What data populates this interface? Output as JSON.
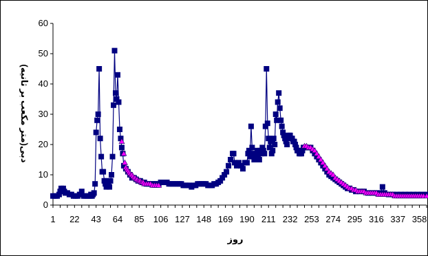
{
  "chart_data": {
    "type": "line",
    "xlabel": "روز",
    "ylabel": "دبی(متر مکعب بر ثانیه)",
    "xlim": [
      1,
      365
    ],
    "ylim": [
      0,
      60
    ],
    "grid": false,
    "legend": "none",
    "x_ticks": [
      1,
      22,
      43,
      64,
      85,
      106,
      127,
      148,
      169,
      190,
      211,
      232,
      253,
      274,
      295,
      316,
      337,
      358
    ],
    "y_ticks": [
      0,
      10,
      20,
      30,
      40,
      50,
      60
    ],
    "colors": {
      "observed": "#000080",
      "simulated": "#ff00ff",
      "sim_edge": "#1a0a6e"
    },
    "series": [
      {
        "values_day_q": [
          [
            1,
            3
          ],
          [
            3,
            3
          ],
          [
            5,
            3
          ],
          [
            7,
            3.5
          ],
          [
            8,
            4.5
          ],
          [
            9,
            5.5
          ],
          [
            10,
            5
          ],
          [
            11,
            5.5
          ],
          [
            12,
            4.5
          ],
          [
            13,
            4
          ],
          [
            15,
            4
          ],
          [
            17,
            3.5
          ],
          [
            19,
            3.5
          ],
          [
            21,
            3
          ],
          [
            23,
            3
          ],
          [
            25,
            3
          ],
          [
            27,
            3.5
          ],
          [
            29,
            4.5
          ],
          [
            31,
            3
          ],
          [
            33,
            3
          ],
          [
            35,
            3
          ],
          [
            37,
            3
          ],
          [
            38,
            3.5
          ],
          [
            39,
            3
          ],
          [
            40,
            3.5
          ],
          [
            41,
            4
          ],
          [
            42,
            7
          ],
          [
            43,
            24
          ],
          [
            44,
            28
          ],
          [
            45,
            30
          ],
          [
            46,
            45
          ],
          [
            47,
            22
          ],
          [
            48,
            16
          ],
          [
            49,
            11
          ],
          [
            50,
            11
          ],
          [
            51,
            8
          ],
          [
            52,
            7
          ],
          [
            53,
            6
          ],
          [
            54,
            8
          ],
          [
            55,
            7
          ],
          [
            56,
            6
          ],
          [
            57,
            8
          ],
          [
            58,
            10
          ],
          [
            59,
            16
          ],
          [
            60,
            33
          ],
          [
            61,
            51
          ],
          [
            62,
            37
          ],
          [
            63,
            35
          ],
          [
            64,
            43
          ],
          [
            65,
            34
          ],
          [
            66,
            25
          ],
          [
            67,
            22
          ],
          [
            68,
            19
          ],
          [
            69,
            17
          ],
          [
            70,
            13
          ],
          [
            72,
            12
          ],
          [
            74,
            11
          ],
          [
            76,
            10
          ],
          [
            78,
            9
          ],
          [
            80,
            9
          ],
          [
            82,
            8.5
          ],
          [
            84,
            8
          ],
          [
            86,
            8
          ],
          [
            88,
            7.5
          ],
          [
            90,
            7.5
          ],
          [
            92,
            7
          ],
          [
            94,
            7
          ],
          [
            96,
            7
          ],
          [
            98,
            7
          ],
          [
            100,
            7
          ],
          [
            102,
            7
          ],
          [
            104,
            7
          ],
          [
            106,
            7.5
          ],
          [
            108,
            7.5
          ],
          [
            110,
            7.5
          ],
          [
            112,
            7.5
          ],
          [
            114,
            7
          ],
          [
            116,
            7
          ],
          [
            118,
            7
          ],
          [
            120,
            7
          ],
          [
            122,
            7
          ],
          [
            124,
            7
          ],
          [
            126,
            7
          ],
          [
            128,
            6.5
          ],
          [
            130,
            6.5
          ],
          [
            132,
            6.5
          ],
          [
            134,
            6.5
          ],
          [
            136,
            6
          ],
          [
            138,
            6.5
          ],
          [
            140,
            6.5
          ],
          [
            142,
            7
          ],
          [
            144,
            7
          ],
          [
            146,
            7
          ],
          [
            148,
            7
          ],
          [
            150,
            7
          ],
          [
            152,
            6.5
          ],
          [
            154,
            6.5
          ],
          [
            156,
            6.5
          ],
          [
            158,
            7
          ],
          [
            160,
            7
          ],
          [
            162,
            7.5
          ],
          [
            164,
            8
          ],
          [
            166,
            9
          ],
          [
            168,
            10
          ],
          [
            170,
            11
          ],
          [
            172,
            13
          ],
          [
            174,
            15
          ],
          [
            176,
            17
          ],
          [
            177,
            17
          ],
          [
            178,
            14
          ],
          [
            180,
            13
          ],
          [
            182,
            14
          ],
          [
            184,
            13
          ],
          [
            186,
            12
          ],
          [
            188,
            14
          ],
          [
            190,
            14
          ],
          [
            191,
            17
          ],
          [
            192,
            18
          ],
          [
            193,
            16
          ],
          [
            194,
            26
          ],
          [
            195,
            19
          ],
          [
            196,
            17
          ],
          [
            197,
            15
          ],
          [
            198,
            16
          ],
          [
            199,
            17
          ],
          [
            200,
            18
          ],
          [
            201,
            16
          ],
          [
            202,
            15
          ],
          [
            203,
            18
          ],
          [
            204,
            17
          ],
          [
            205,
            19
          ],
          [
            206,
            18
          ],
          [
            207,
            17
          ],
          [
            208,
            26
          ],
          [
            209,
            45
          ],
          [
            210,
            27
          ],
          [
            211,
            22
          ],
          [
            212,
            19
          ],
          [
            213,
            21
          ],
          [
            214,
            17
          ],
          [
            215,
            18
          ],
          [
            216,
            22
          ],
          [
            217,
            20
          ],
          [
            218,
            30
          ],
          [
            219,
            28
          ],
          [
            220,
            34
          ],
          [
            221,
            37
          ],
          [
            222,
            32
          ],
          [
            223,
            28
          ],
          [
            224,
            26
          ],
          [
            225,
            24
          ],
          [
            226,
            23
          ],
          [
            227,
            22
          ],
          [
            228,
            21
          ],
          [
            229,
            20
          ],
          [
            230,
            22
          ],
          [
            231,
            23
          ],
          [
            232,
            23
          ],
          [
            233,
            22
          ],
          [
            234,
            22
          ],
          [
            235,
            21
          ],
          [
            236,
            21
          ],
          [
            237,
            20
          ],
          [
            238,
            19
          ],
          [
            239,
            18
          ],
          [
            240,
            18
          ],
          [
            241,
            17
          ],
          [
            242,
            17
          ],
          [
            243,
            17
          ],
          [
            244,
            18
          ],
          [
            245,
            19
          ],
          [
            246,
            19
          ],
          [
            247,
            19
          ],
          [
            248,
            19
          ],
          [
            250,
            19
          ],
          [
            252,
            19
          ],
          [
            254,
            18
          ],
          [
            256,
            17
          ],
          [
            258,
            16
          ],
          [
            260,
            15
          ],
          [
            262,
            14
          ],
          [
            264,
            13
          ],
          [
            266,
            12
          ],
          [
            268,
            11
          ],
          [
            270,
            10
          ],
          [
            272,
            9.5
          ],
          [
            274,
            9
          ],
          [
            276,
            8.5
          ],
          [
            278,
            8
          ],
          [
            280,
            7.5
          ],
          [
            282,
            7
          ],
          [
            284,
            6.5
          ],
          [
            286,
            6
          ],
          [
            288,
            5.5
          ],
          [
            290,
            5.5
          ],
          [
            292,
            5
          ],
          [
            294,
            5
          ],
          [
            296,
            4.5
          ],
          [
            300,
            4.5
          ],
          [
            304,
            4.5
          ],
          [
            308,
            4
          ],
          [
            312,
            4
          ],
          [
            316,
            4
          ],
          [
            320,
            4
          ],
          [
            322,
            6
          ],
          [
            324,
            4
          ],
          [
            328,
            3.5
          ],
          [
            332,
            3.5
          ],
          [
            336,
            3.5
          ],
          [
            340,
            3.5
          ],
          [
            344,
            3.5
          ],
          [
            348,
            3.5
          ],
          [
            352,
            3.5
          ],
          [
            356,
            3.5
          ],
          [
            360,
            3.5
          ],
          [
            365,
            3.5
          ]
        ]
      },
      {
        "values_day_q": [
          [
            68,
            21
          ],
          [
            70,
            17
          ],
          [
            71,
            14
          ],
          [
            72,
            12.5
          ],
          [
            73,
            12
          ],
          [
            74,
            11.5
          ],
          [
            75,
            11
          ],
          [
            76,
            10.5
          ],
          [
            77,
            10
          ],
          [
            78,
            10
          ],
          [
            79,
            9.5
          ],
          [
            80,
            9
          ],
          [
            81,
            9
          ],
          [
            82,
            8.5
          ],
          [
            83,
            8.5
          ],
          [
            84,
            8
          ],
          [
            85,
            8
          ],
          [
            86,
            8
          ],
          [
            87,
            7.5
          ],
          [
            88,
            7.5
          ],
          [
            89,
            7.5
          ],
          [
            90,
            7
          ],
          [
            92,
            7
          ],
          [
            94,
            7
          ],
          [
            96,
            7
          ],
          [
            98,
            6.5
          ],
          [
            100,
            6.5
          ],
          [
            102,
            6.5
          ],
          [
            104,
            6.5
          ],
          [
            246,
            19.5
          ],
          [
            248,
            19.5
          ],
          [
            250,
            19
          ],
          [
            252,
            19
          ],
          [
            254,
            18.5
          ],
          [
            256,
            18
          ],
          [
            258,
            17
          ],
          [
            260,
            16
          ],
          [
            262,
            15
          ],
          [
            264,
            14
          ],
          [
            266,
            13
          ],
          [
            268,
            12
          ],
          [
            270,
            11
          ],
          [
            272,
            10.5
          ],
          [
            274,
            10
          ],
          [
            276,
            9
          ],
          [
            278,
            8.5
          ],
          [
            280,
            8
          ],
          [
            282,
            7.5
          ],
          [
            284,
            7
          ],
          [
            286,
            6.5
          ],
          [
            288,
            6
          ],
          [
            290,
            5.5
          ],
          [
            292,
            5.5
          ],
          [
            294,
            5
          ],
          [
            296,
            5
          ],
          [
            298,
            4.5
          ],
          [
            300,
            4.5
          ],
          [
            302,
            4.5
          ],
          [
            304,
            4.5
          ],
          [
            306,
            4
          ],
          [
            308,
            4
          ],
          [
            310,
            4
          ],
          [
            312,
            4
          ],
          [
            314,
            4
          ],
          [
            316,
            4
          ],
          [
            318,
            3.5
          ],
          [
            320,
            3.5
          ],
          [
            322,
            3.5
          ],
          [
            324,
            3.5
          ],
          [
            326,
            3.5
          ],
          [
            328,
            3.5
          ],
          [
            330,
            3.5
          ],
          [
            332,
            3.5
          ],
          [
            334,
            3
          ],
          [
            336,
            3
          ],
          [
            338,
            3
          ],
          [
            340,
            3
          ],
          [
            342,
            3
          ],
          [
            344,
            3
          ],
          [
            346,
            3
          ],
          [
            348,
            3
          ],
          [
            350,
            3
          ],
          [
            352,
            3
          ],
          [
            354,
            3
          ],
          [
            356,
            3
          ],
          [
            358,
            3
          ],
          [
            360,
            3
          ],
          [
            362,
            3
          ],
          [
            365,
            3
          ]
        ]
      }
    ]
  }
}
